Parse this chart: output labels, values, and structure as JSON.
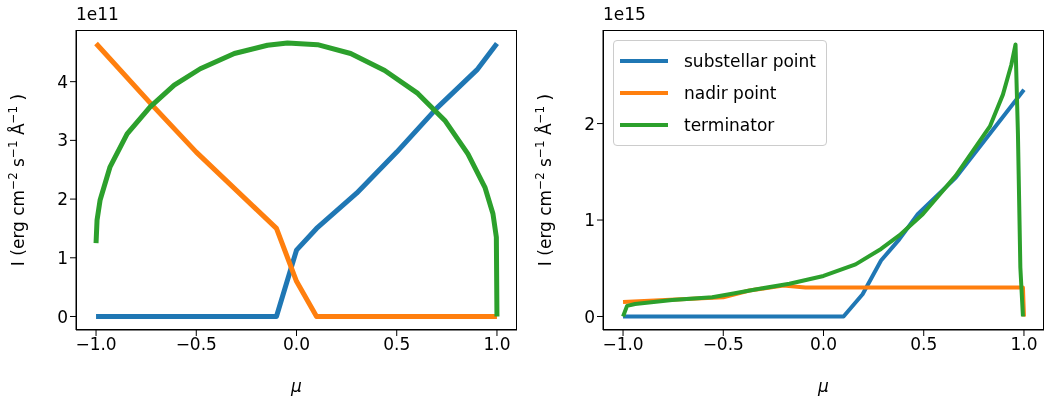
{
  "chart_data": [
    {
      "type": "line",
      "xlabel": "μ",
      "ylabel": "I (erg cm$^{−2}$ s$^{−1}$ Å$^{−1}$)",
      "annotations": [
        "1e11"
      ],
      "xlim": [
        -1.1,
        1.1
      ],
      "xticks": [
        {
          "value": -1,
          "label": "−1.0"
        },
        {
          "value": -0.5,
          "label": "−0.5"
        },
        {
          "value": 0,
          "label": "0.0"
        },
        {
          "value": 0.5,
          "label": "0.5"
        },
        {
          "value": 1,
          "label": "1.0"
        }
      ],
      "ylim": [
        -0.23,
        4.88
      ],
      "yticks": [
        0,
        1,
        2,
        3,
        4
      ],
      "grid": false,
      "legend": false,
      "line_style": "solid",
      "marker": "none",
      "series": [
        {
          "color": "#1f77b4",
          "x": [
            -1,
            -0.5,
            -0.1,
            0,
            0.1,
            0.3,
            0.5,
            0.7,
            0.9,
            1
          ],
          "values": [
            0,
            0,
            0,
            1.13,
            1.5,
            2.1,
            2.8,
            3.55,
            4.2,
            4.65
          ]
        },
        {
          "color": "#ff7f0e",
          "x": [
            -1,
            -0.72,
            -0.5,
            -0.1,
            0,
            0.1,
            0.5,
            1
          ],
          "values": [
            4.65,
            3.6,
            2.8,
            1.5,
            0.6,
            0,
            0,
            0
          ]
        },
        {
          "color": "#2ca02c",
          "x": [
            -1,
            -0.995,
            -0.98,
            -0.93,
            -0.845,
            -0.73,
            -0.61,
            -0.48,
            -0.31,
            -0.145,
            -0.045,
            0.105,
            0.27,
            0.44,
            0.605,
            0.74,
            0.855,
            0.94,
            0.98,
            0.997,
            1
          ],
          "values": [
            1.25,
            1.64,
            1.98,
            2.55,
            3.11,
            3.57,
            3.94,
            4.22,
            4.48,
            4.62,
            4.66,
            4.63,
            4.48,
            4.19,
            3.8,
            3.34,
            2.77,
            2.2,
            1.75,
            1.35,
            0
          ]
        }
      ]
    },
    {
      "type": "line",
      "xlabel": "μ",
      "ylabel": "I (erg cm$^{−2}$ s$^{−1}$ Å$^{−1}$)",
      "annotations": [
        "1e15"
      ],
      "xlim": [
        -1.1,
        1.1
      ],
      "xticks": [
        {
          "value": -1,
          "label": "−1.0"
        },
        {
          "value": -0.5,
          "label": "−0.5"
        },
        {
          "value": 0,
          "label": "0.0"
        },
        {
          "value": 0.5,
          "label": "0.5"
        },
        {
          "value": 1,
          "label": "1.0"
        }
      ],
      "ylim": [
        -0.14,
        2.97
      ],
      "yticks": [
        0,
        1,
        2
      ],
      "grid": false,
      "legend": "top left",
      "line_style": "solid",
      "marker": "none",
      "series": [
        {
          "name": "substellar point",
          "color": "#1f77b4",
          "x": [
            -1,
            -0.5,
            0,
            0.1,
            0.195,
            0.287,
            0.378,
            0.47,
            0.66,
            1
          ],
          "values": [
            0,
            0,
            0,
            0,
            0.23,
            0.58,
            0.8,
            1.06,
            1.44,
            2.35
          ]
        },
        {
          "name": "nadir point",
          "color": "#ff7f0e",
          "x": [
            -1,
            -0.5,
            -0.37,
            -0.2,
            -0.09,
            0.5,
            0.995,
            1
          ],
          "values": [
            0.15,
            0.2,
            0.27,
            0.32,
            0.3,
            0.3,
            0.3,
            0
          ]
        },
        {
          "name": "terminator",
          "color": "#2ca02c",
          "x": [
            -1,
            -0.98,
            -0.94,
            -0.755,
            -0.555,
            -0.47,
            -0.34,
            -0.17,
            0,
            0.16,
            0.287,
            0.378,
            0.495,
            0.66,
            0.83,
            0.895,
            0.937,
            0.958,
            0.97,
            0.982,
            0.995
          ],
          "values": [
            0,
            0.11,
            0.13,
            0.17,
            0.2,
            0.23,
            0.28,
            0.34,
            0.42,
            0.54,
            0.7,
            0.84,
            1.06,
            1.46,
            1.97,
            2.3,
            2.61,
            2.82,
            1.89,
            0.51,
            0
          ]
        }
      ]
    }
  ]
}
